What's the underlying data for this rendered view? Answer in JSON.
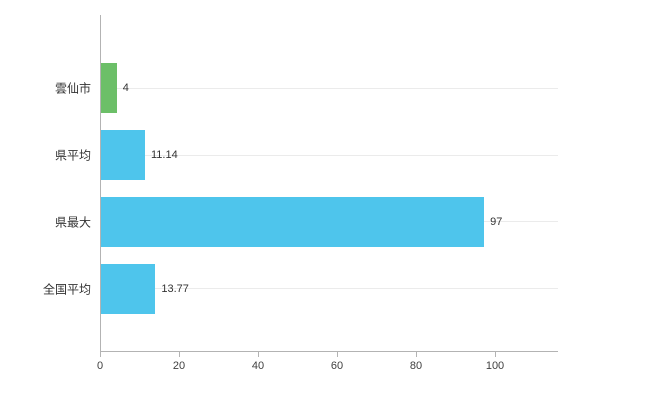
{
  "chart_data": {
    "type": "bar",
    "orientation": "horizontal",
    "title": "",
    "categories": [
      "雲仙市",
      "県平均",
      "県最大",
      "全国平均"
    ],
    "values": [
      4,
      11.14,
      97,
      13.77
    ],
    "value_labels": [
      "4",
      "11.14",
      "97",
      "13.77"
    ],
    "bar_colors": [
      "#6cbf68",
      "#4ec5ec",
      "#4ec5ec",
      "#4ec5ec"
    ],
    "xticks": [
      0,
      20,
      40,
      60,
      80,
      100
    ],
    "xlim": [
      0,
      116
    ],
    "grid": "horizontal-light-lines-at-category-centers",
    "legend": "none",
    "colors": {
      "axis_line": "#b3b3b3",
      "grid_line": "#ebebeb",
      "tick_label": "#404040",
      "value_label": "#333333",
      "background": "#ffffff"
    }
  }
}
